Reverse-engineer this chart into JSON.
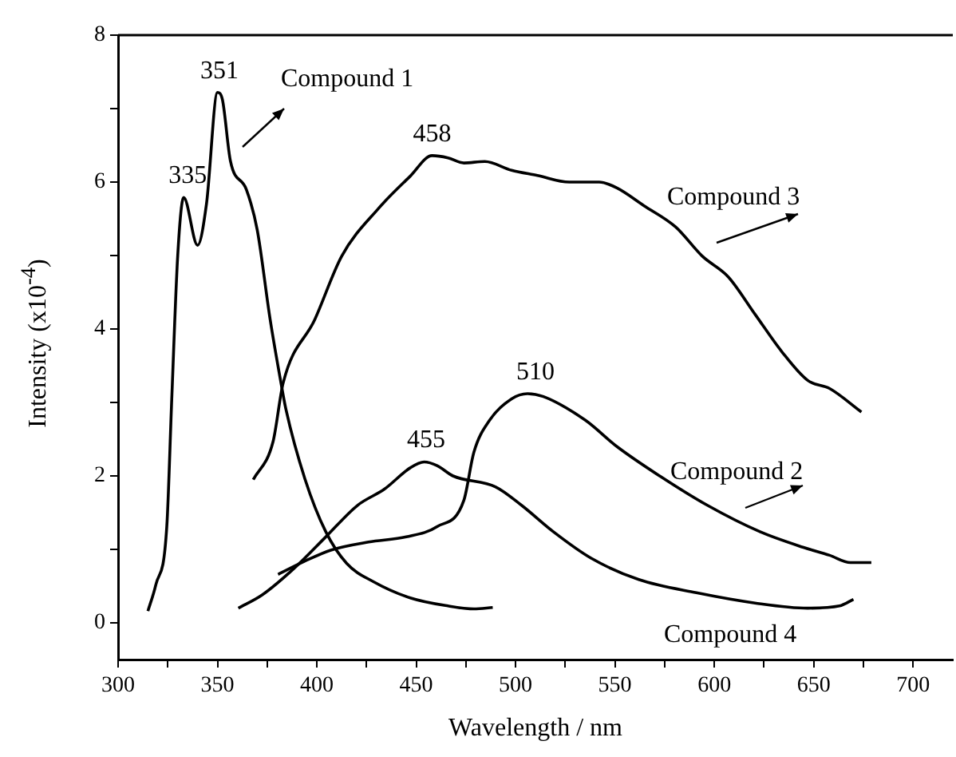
{
  "chart_data": {
    "type": "line",
    "xlabel": "Wavelength / nm",
    "ylabel": "Intensity (x10$^{-4}$)",
    "xlim": [
      300,
      720
    ],
    "ylim": [
      -0.5,
      8
    ],
    "xticks": [
      300,
      {
        "value": 325,
        "label": null
      },
      350,
      {
        "value": 375,
        "label": null
      },
      400,
      {
        "value": 425,
        "label": null
      },
      450,
      {
        "value": 475,
        "label": null
      },
      500,
      {
        "value": 525,
        "label": null
      },
      550,
      {
        "value": 575,
        "label": null
      },
      600,
      {
        "value": 625,
        "label": null
      },
      650,
      {
        "value": 675,
        "label": null
      },
      700
    ],
    "yticks": [
      0,
      {
        "value": 1,
        "label": null
      },
      2,
      {
        "value": 3,
        "label": null
      },
      4,
      {
        "value": 5,
        "label": null
      },
      6,
      {
        "value": 7,
        "label": null
      },
      8
    ],
    "grid": false,
    "legend": false,
    "marker": "none",
    "line_style": "solid",
    "series": [
      {
        "name": "Compound 1",
        "color": "#000000",
        "x": [
          315,
          319,
          324.5,
          327,
          330,
          333,
          340,
          344.5,
          350,
          352.5,
          356.5,
          364.5,
          370,
          376.5,
          382,
          384.5,
          394,
          404.5,
          415,
          428.5,
          447,
          466,
          479,
          488.5
        ],
        "values": [
          0.16,
          0.52,
          1.31,
          3.05,
          5.0,
          5.79,
          5.14,
          5.71,
          7.22,
          7.12,
          6.29,
          5.9,
          5.35,
          4.13,
          3.26,
          2.9,
          1.96,
          1.24,
          0.81,
          0.56,
          0.34,
          0.23,
          0.19,
          0.21
        ]
      },
      {
        "name": "Compound 2",
        "color": "#000000",
        "x": [
          380.5,
          394,
          407,
          426,
          445,
          460.5,
          474,
          479,
          487,
          498,
          506,
          514,
          535,
          551,
          572.5,
          596.5,
          623,
          644.5,
          658,
          668.5,
          679
        ],
        "values": [
          0.66,
          0.84,
          0.99,
          1.1,
          1.17,
          1.31,
          1.67,
          2.32,
          2.76,
          3.05,
          3.12,
          3.08,
          2.76,
          2.4,
          2.0,
          1.6,
          1.24,
          1.03,
          0.92,
          0.82,
          0.82
        ]
      },
      {
        "name": "Compound 3",
        "color": "#000000",
        "x": [
          368,
          378,
          383,
          399,
          412.5,
          431,
          447,
          458,
          466,
          474,
          484.5,
          498,
          511,
          527,
          542,
          551,
          564.5,
          580.5,
          594,
          607,
          620.5,
          634,
          647,
          658,
          674
        ],
        "values": [
          1.95,
          2.47,
          3.26,
          4.13,
          4.99,
          5.64,
          6.08,
          6.36,
          6.33,
          6.26,
          6.28,
          6.16,
          6.09,
          6.0,
          6.0,
          5.92,
          5.68,
          5.39,
          4.99,
          4.71,
          4.2,
          3.69,
          3.3,
          3.19,
          2.87
        ]
      },
      {
        "name": "Compound 4",
        "color": "#000000",
        "x": [
          360.5,
          372.5,
          388.5,
          404.5,
          420.5,
          434,
          447,
          454,
          460.5,
          468.5,
          490,
          503,
          519,
          538,
          562,
          591,
          620.5,
          647,
          663,
          670
        ],
        "values": [
          0.2,
          0.38,
          0.74,
          1.17,
          1.6,
          1.82,
          2.11,
          2.19,
          2.14,
          2.0,
          1.85,
          1.6,
          1.24,
          0.88,
          0.59,
          0.41,
          0.27,
          0.2,
          0.23,
          0.32
        ]
      }
    ],
    "annotations": [
      {
        "text": "335",
        "x": 335,
        "y": 5.8
      },
      {
        "text": "351",
        "x": 351,
        "y": 7.22
      },
      {
        "text": "458",
        "x": 458,
        "y": 6.36
      },
      {
        "text": "455",
        "x": 455,
        "y": 2.2
      },
      {
        "text": "510",
        "x": 510,
        "y": 3.12
      }
    ]
  }
}
